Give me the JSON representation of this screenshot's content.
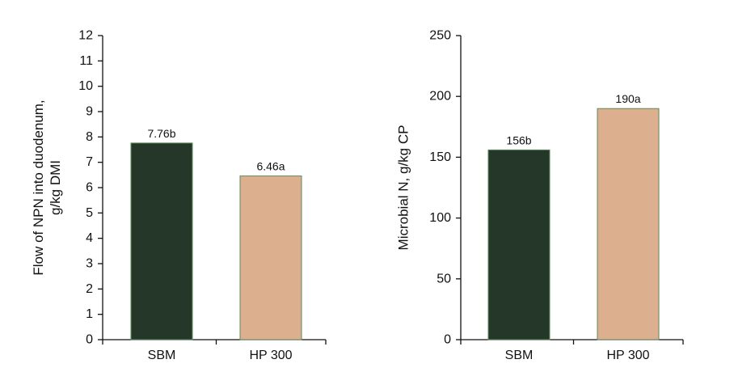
{
  "chart_data": [
    {
      "type": "bar",
      "categories": [
        "SBM",
        "HP 300"
      ],
      "values": [
        7.76,
        6.46
      ],
      "data_labels": [
        "7.76b",
        "6.46a"
      ],
      "colors": [
        "#243729",
        "#dcaf8f"
      ],
      "ylabel_lines": [
        "Flow of NPN into duodenum,",
        "g/kg DMI"
      ],
      "xlabel": "",
      "ylim": [
        0,
        12
      ],
      "yticks": [
        0,
        1,
        2,
        3,
        4,
        5,
        6,
        7,
        8,
        9,
        10,
        11,
        12
      ],
      "grid": false
    },
    {
      "type": "bar",
      "categories": [
        "SBM",
        "HP 300"
      ],
      "values": [
        156,
        190
      ],
      "data_labels": [
        "156b",
        "190a"
      ],
      "colors": [
        "#243729",
        "#dcaf8f"
      ],
      "ylabel_lines": [
        "Microbial N, g/kg CP"
      ],
      "xlabel": "",
      "ylim": [
        0,
        250
      ],
      "yticks": [
        0,
        50,
        100,
        150,
        200,
        250
      ],
      "grid": false
    }
  ]
}
